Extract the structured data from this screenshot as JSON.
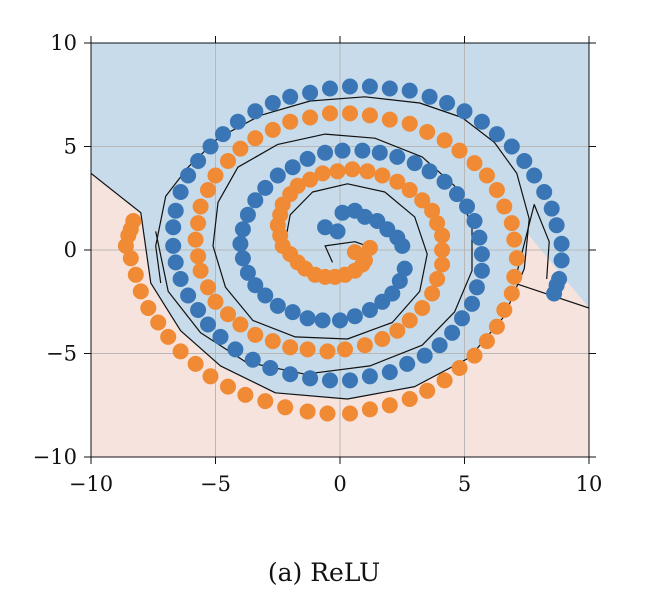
{
  "caption": "(a) ReLU",
  "colors": {
    "class_0_points": "#3a76b5",
    "class_1_points": "#f08a35",
    "region_0_fill": "#c7dbea",
    "region_1_fill": "#f6e3dd",
    "boundary": "#111111",
    "grid": "#b8b8b8"
  },
  "chart_data": {
    "type": "scatter",
    "title": "",
    "xlabel": "",
    "ylabel": "",
    "xlim": [
      -10,
      10
    ],
    "ylim": [
      -10,
      10
    ],
    "grid": true,
    "legend": "none",
    "x_ticks": [
      -10,
      -5,
      0,
      5,
      10
    ],
    "y_ticks": [
      -10,
      -5,
      0,
      5,
      10
    ],
    "x_tick_labels": [
      "−10",
      "−5",
      "0",
      "5",
      "10"
    ],
    "y_tick_labels": [
      "−10",
      "−5",
      "0",
      "5",
      "10"
    ],
    "series": [
      {
        "class": 0,
        "color": "#3a76b5",
        "description": "two-armed spiral, class 0",
        "points": [
          [
            -0.6,
            1.1
          ],
          [
            0.1,
            1.8
          ],
          [
            1.0,
            1.6
          ],
          [
            1.9,
            1.0
          ],
          [
            2.5,
            0.2
          ],
          [
            2.6,
            -0.9
          ],
          [
            2.1,
            -2.1
          ],
          [
            1.2,
            -2.9
          ],
          [
            0.0,
            -3.4
          ],
          [
            -1.3,
            -3.3
          ],
          [
            -2.5,
            -2.7
          ],
          [
            -3.4,
            -1.7
          ],
          [
            -3.9,
            -0.4
          ],
          [
            -3.9,
            1.0
          ],
          [
            -3.4,
            2.4
          ],
          [
            -2.5,
            3.6
          ],
          [
            -1.3,
            4.4
          ],
          [
            0.1,
            4.8
          ],
          [
            1.6,
            4.7
          ],
          [
            3.0,
            4.2
          ],
          [
            4.2,
            3.3
          ],
          [
            5.1,
            2.1
          ],
          [
            5.6,
            0.6
          ],
          [
            5.7,
            -1.0
          ],
          [
            5.3,
            -2.6
          ],
          [
            4.5,
            -4.0
          ],
          [
            3.4,
            -5.1
          ],
          [
            2.0,
            -5.9
          ],
          [
            0.4,
            -6.3
          ],
          [
            -1.2,
            -6.2
          ],
          [
            -2.8,
            -5.7
          ],
          [
            -4.2,
            -4.8
          ],
          [
            -5.3,
            -3.6
          ],
          [
            -6.1,
            -2.2
          ],
          [
            -6.6,
            -0.6
          ],
          [
            -6.7,
            1.1
          ],
          [
            -6.4,
            2.8
          ],
          [
            -5.7,
            4.3
          ],
          [
            -4.7,
            5.6
          ],
          [
            -3.4,
            6.7
          ],
          [
            -2.0,
            7.4
          ],
          [
            -0.4,
            7.8
          ],
          [
            1.2,
            7.9
          ],
          [
            2.8,
            7.7
          ],
          [
            4.3,
            7.1
          ],
          [
            5.7,
            6.2
          ],
          [
            6.9,
            5.0
          ],
          [
            7.8,
            3.6
          ],
          [
            8.5,
            2.0
          ],
          [
            8.9,
            0.3
          ],
          [
            8.8,
            -1.4
          ],
          [
            8.6,
            -2.1
          ],
          [
            -0.1,
            0.9
          ],
          [
            0.6,
            1.9
          ],
          [
            1.5,
            1.4
          ],
          [
            2.3,
            0.6
          ],
          [
            2.4,
            -1.5
          ],
          [
            1.7,
            -2.5
          ],
          [
            0.6,
            -3.2
          ],
          [
            -0.7,
            -3.4
          ],
          [
            -1.9,
            -3.0
          ],
          [
            -3.0,
            -2.2
          ],
          [
            -3.7,
            -1.1
          ],
          [
            -4.0,
            0.3
          ],
          [
            -3.7,
            1.7
          ],
          [
            -3.0,
            3.0
          ],
          [
            -1.9,
            4.0
          ],
          [
            -0.6,
            4.7
          ],
          [
            0.9,
            4.8
          ],
          [
            2.3,
            4.5
          ],
          [
            3.6,
            3.8
          ],
          [
            4.7,
            2.7
          ],
          [
            5.4,
            1.4
          ],
          [
            5.7,
            -0.2
          ],
          [
            5.5,
            -1.8
          ],
          [
            4.9,
            -3.3
          ],
          [
            4.0,
            -4.6
          ],
          [
            2.7,
            -5.5
          ],
          [
            1.2,
            -6.1
          ],
          [
            -0.4,
            -6.3
          ],
          [
            -2.0,
            -6.0
          ],
          [
            -3.5,
            -5.3
          ],
          [
            -4.8,
            -4.2
          ],
          [
            -5.7,
            -2.9
          ],
          [
            -6.4,
            -1.4
          ],
          [
            -6.7,
            0.2
          ],
          [
            -6.6,
            1.9
          ],
          [
            -6.1,
            3.6
          ],
          [
            -5.2,
            5.0
          ],
          [
            -4.1,
            6.2
          ],
          [
            -2.7,
            7.1
          ],
          [
            -1.2,
            7.6
          ],
          [
            0.4,
            7.9
          ],
          [
            2.0,
            7.8
          ],
          [
            3.6,
            7.4
          ],
          [
            5.0,
            6.7
          ],
          [
            6.3,
            5.6
          ],
          [
            7.4,
            4.3
          ],
          [
            8.2,
            2.8
          ],
          [
            8.7,
            1.2
          ],
          [
            8.9,
            -0.5
          ],
          [
            8.7,
            -1.7
          ]
        ]
      },
      {
        "class": 1,
        "color": "#f08a35",
        "description": "two-armed spiral, class 1",
        "points": [
          [
            0.6,
            -0.1
          ],
          [
            1.2,
            0.1
          ],
          [
            0.9,
            -0.7
          ],
          [
            0.2,
            -1.2
          ],
          [
            -0.6,
            -1.3
          ],
          [
            -1.4,
            -0.9
          ],
          [
            -2.0,
            -0.2
          ],
          [
            -2.4,
            0.7
          ],
          [
            -2.4,
            1.7
          ],
          [
            -2.0,
            2.7
          ],
          [
            -1.2,
            3.4
          ],
          [
            -0.1,
            3.8
          ],
          [
            1.1,
            3.8
          ],
          [
            2.3,
            3.3
          ],
          [
            3.3,
            2.4
          ],
          [
            3.9,
            1.3
          ],
          [
            4.1,
            0.0
          ],
          [
            3.9,
            -1.4
          ],
          [
            3.3,
            -2.8
          ],
          [
            2.3,
            -3.9
          ],
          [
            1.0,
            -4.6
          ],
          [
            -0.5,
            -4.9
          ],
          [
            -2.0,
            -4.7
          ],
          [
            -3.4,
            -4.1
          ],
          [
            -4.5,
            -3.1
          ],
          [
            -5.3,
            -1.8
          ],
          [
            -5.7,
            -0.3
          ],
          [
            -5.7,
            1.3
          ],
          [
            -5.3,
            2.9
          ],
          [
            -4.5,
            4.3
          ],
          [
            -3.4,
            5.4
          ],
          [
            -2.0,
            6.2
          ],
          [
            -0.4,
            6.6
          ],
          [
            1.2,
            6.5
          ],
          [
            2.8,
            6.1
          ],
          [
            4.2,
            5.3
          ],
          [
            5.4,
            4.2
          ],
          [
            6.3,
            2.9
          ],
          [
            6.9,
            1.3
          ],
          [
            7.1,
            -0.4
          ],
          [
            6.9,
            -2.1
          ],
          [
            6.3,
            -3.7
          ],
          [
            5.4,
            -5.1
          ],
          [
            4.2,
            -6.3
          ],
          [
            2.8,
            -7.2
          ],
          [
            1.2,
            -7.7
          ],
          [
            -0.5,
            -7.9
          ],
          [
            -2.2,
            -7.6
          ],
          [
            -3.8,
            -7.0
          ],
          [
            -5.2,
            -6.1
          ],
          [
            -6.4,
            -4.9
          ],
          [
            -7.3,
            -3.5
          ],
          [
            -8.0,
            -2.0
          ],
          [
            -8.4,
            -0.4
          ],
          [
            -8.5,
            0.7
          ],
          [
            -8.3,
            1.4
          ],
          [
            1.0,
            -0.5
          ],
          [
            0.6,
            -1.0
          ],
          [
            -0.2,
            -1.3
          ],
          [
            -1.0,
            -1.2
          ],
          [
            -1.7,
            -0.6
          ],
          [
            -2.3,
            0.2
          ],
          [
            -2.5,
            1.2
          ],
          [
            -2.3,
            2.2
          ],
          [
            -1.7,
            3.1
          ],
          [
            -0.7,
            3.7
          ],
          [
            0.5,
            3.9
          ],
          [
            1.7,
            3.6
          ],
          [
            2.8,
            2.9
          ],
          [
            3.7,
            1.9
          ],
          [
            4.1,
            0.7
          ],
          [
            4.1,
            -0.7
          ],
          [
            3.7,
            -2.1
          ],
          [
            2.8,
            -3.4
          ],
          [
            1.7,
            -4.3
          ],
          [
            0.2,
            -4.8
          ],
          [
            -1.3,
            -4.8
          ],
          [
            -2.7,
            -4.4
          ],
          [
            -4.0,
            -3.6
          ],
          [
            -5.0,
            -2.5
          ],
          [
            -5.6,
            -1.0
          ],
          [
            -5.8,
            0.5
          ],
          [
            -5.6,
            2.1
          ],
          [
            -5.0,
            3.6
          ],
          [
            -4.0,
            4.9
          ],
          [
            -2.7,
            5.8
          ],
          [
            -1.2,
            6.4
          ],
          [
            0.4,
            6.6
          ],
          [
            2.0,
            6.3
          ],
          [
            3.5,
            5.7
          ],
          [
            4.8,
            4.8
          ],
          [
            5.9,
            3.6
          ],
          [
            6.6,
            2.1
          ],
          [
            7.0,
            0.5
          ],
          [
            7.0,
            -1.3
          ],
          [
            6.6,
            -2.9
          ],
          [
            5.9,
            -4.4
          ],
          [
            4.8,
            -5.7
          ],
          [
            3.5,
            -6.8
          ],
          [
            2.0,
            -7.5
          ],
          [
            0.4,
            -7.9
          ],
          [
            -1.3,
            -7.8
          ],
          [
            -3.0,
            -7.3
          ],
          [
            -4.5,
            -6.6
          ],
          [
            -5.8,
            -5.5
          ],
          [
            -6.9,
            -4.2
          ],
          [
            -7.7,
            -2.8
          ],
          [
            -8.2,
            -1.2
          ],
          [
            -8.6,
            0.2
          ],
          [
            -8.4,
            1.0
          ]
        ]
      }
    ],
    "decision_boundary": {
      "description": "piecewise-linear boundary separating the two classes",
      "region_above_class": 0,
      "region_below_class": 1,
      "outer_line": [
        [
          -10,
          3.7
        ],
        [
          -8.0,
          1.8
        ],
        [
          -7.6,
          -1.6
        ],
        [
          -6.4,
          -3.9
        ],
        [
          -4.8,
          -5.6
        ],
        [
          -2.6,
          -6.9
        ],
        [
          0.3,
          -7.2
        ],
        [
          3.0,
          -6.6
        ],
        [
          5.2,
          -5.2
        ],
        [
          6.6,
          -3.2
        ],
        [
          7.4,
          -0.9
        ],
        [
          7.6,
          1.5
        ],
        [
          7.1,
          3.7
        ],
        [
          6.2,
          5.2
        ],
        [
          4.9,
          6.4
        ],
        [
          3.2,
          7.1
        ],
        [
          1.0,
          7.4
        ],
        [
          -1.2,
          7.2
        ],
        [
          -3.2,
          6.5
        ],
        [
          -4.9,
          5.4
        ],
        [
          -6.1,
          4.0
        ],
        [
          -7.0,
          2.6
        ],
        [
          -7.4,
          0.2
        ],
        [
          -7.2,
          -1.6
        ]
      ],
      "inner_spiral": [
        [
          -7.4,
          0.9
        ],
        [
          -6.9,
          -2.0
        ],
        [
          -5.6,
          -4.0
        ],
        [
          -3.8,
          -5.4
        ],
        [
          -1.4,
          -6.0
        ],
        [
          1.2,
          -5.6
        ],
        [
          3.3,
          -4.6
        ],
        [
          4.6,
          -3.0
        ],
        [
          5.3,
          -1.0
        ],
        [
          5.3,
          1.2
        ],
        [
          4.6,
          3.1
        ],
        [
          3.3,
          4.5
        ],
        [
          1.4,
          5.4
        ],
        [
          -0.6,
          5.6
        ],
        [
          -2.5,
          5.1
        ],
        [
          -4.1,
          4.0
        ],
        [
          -4.9,
          2.3
        ],
        [
          -5.1,
          0.2
        ],
        [
          -4.6,
          -1.8
        ],
        [
          -3.5,
          -3.4
        ],
        [
          -1.8,
          -4.2
        ],
        [
          0.3,
          -4.3
        ],
        [
          2.1,
          -3.5
        ],
        [
          3.2,
          -2.0
        ],
        [
          3.5,
          -0.2
        ],
        [
          3.0,
          1.6
        ],
        [
          1.8,
          2.8
        ],
        [
          0.3,
          3.2
        ],
        [
          -1.1,
          2.8
        ],
        [
          -2.0,
          1.7
        ],
        [
          -2.2,
          0.4
        ],
        [
          -1.6,
          -0.8
        ],
        [
          -0.5,
          -1.4
        ],
        [
          0.6,
          -1.1
        ],
        [
          1.3,
          0.1
        ],
        [
          0.6,
          0.4
        ],
        [
          -0.6,
          0.2
        ],
        [
          -0.3,
          -0.6
        ]
      ],
      "right_tail": [
        [
          8.3,
          -1.4
        ],
        [
          8.4,
          0.4
        ],
        [
          7.8,
          2.2
        ],
        [
          7.0,
          -1.6
        ],
        [
          10,
          -2.8
        ]
      ]
    }
  }
}
